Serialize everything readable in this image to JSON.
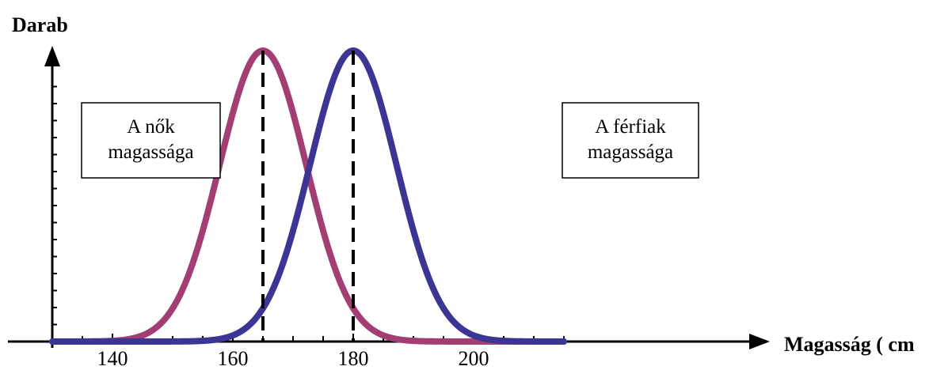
{
  "chart_data": {
    "type": "line",
    "title": "",
    "ylabel": "Darab",
    "xlabel": "Magasság ( cm",
    "xlim": [
      130,
      215
    ],
    "x_ticks": [
      140,
      160,
      180,
      200
    ],
    "x_tick_labels": [
      "140",
      "160",
      "180",
      "200"
    ],
    "series": [
      {
        "name": "",
        "color": "#a23e74",
        "mean": 165,
        "x": [
          130,
          135,
          140,
          145,
          150,
          155,
          160,
          165,
          170,
          175,
          180,
          185,
          190,
          195,
          200,
          205,
          210,
          215
        ],
        "y": [
          0.007,
          0.022,
          0.065,
          0.16,
          0.32,
          0.56,
          0.88,
          1.0,
          0.88,
          0.56,
          0.32,
          0.16,
          0.065,
          0.022,
          0.007,
          0.002,
          0.001,
          0.0
        ]
      },
      {
        "name": "",
        "color": "#3d3593",
        "mean": 180,
        "x": [
          130,
          135,
          140,
          145,
          150,
          155,
          160,
          165,
          170,
          175,
          180,
          185,
          190,
          195,
          200,
          205,
          210,
          215
        ],
        "y": [
          0.0,
          0.0,
          0.001,
          0.002,
          0.007,
          0.022,
          0.065,
          0.32,
          0.56,
          0.88,
          1.0,
          0.88,
          0.56,
          0.32,
          0.16,
          0.065,
          0.022,
          0.007
        ]
      }
    ],
    "vlines": [
      165,
      180
    ],
    "annotations": [
      {
        "lines": [
          "A nők",
          "magassága"
        ]
      },
      {
        "lines": [
          "A férfiak",
          "magassága"
        ]
      }
    ]
  }
}
